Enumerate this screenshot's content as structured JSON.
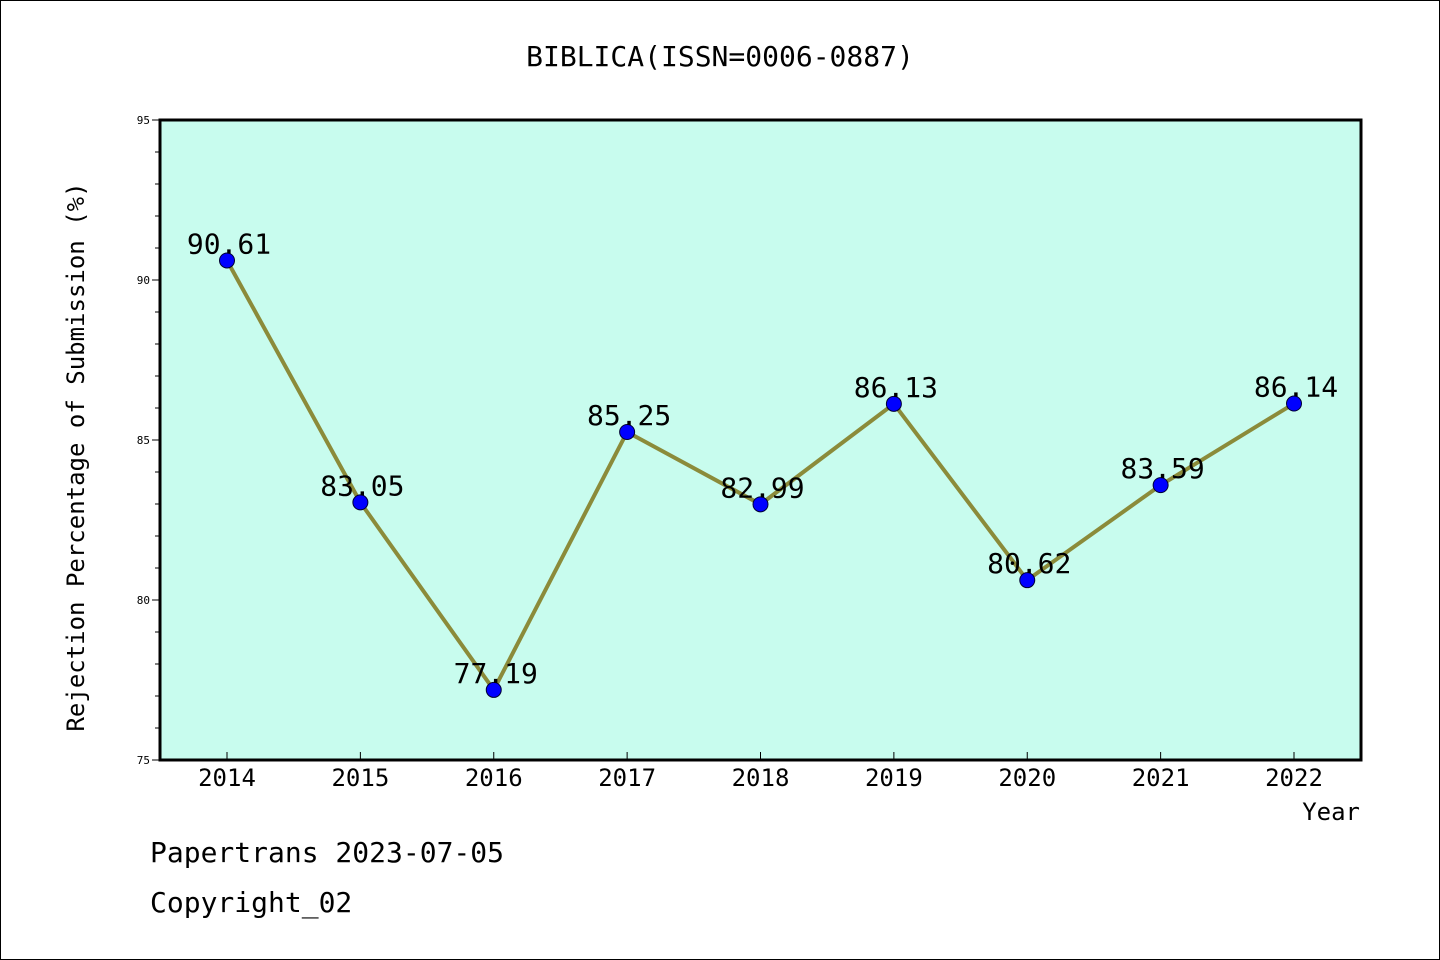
{
  "chart_data": {
    "type": "line",
    "title": "BIBLICA(ISSN=0006-0887)",
    "xlabel": "Year",
    "ylabel": "Rejection Percentage of Submission (%)",
    "categories": [
      "2014",
      "2015",
      "2016",
      "2017",
      "2018",
      "2019",
      "2020",
      "2021",
      "2022"
    ],
    "values": [
      90.61,
      83.05,
      77.19,
      85.25,
      82.99,
      86.13,
      80.62,
      83.59,
      86.14
    ],
    "data_labels": [
      "90.61",
      "83.05",
      "77.19",
      "85.25",
      "82.99",
      "86.13",
      "80.62",
      "83.59",
      "86.14"
    ],
    "ylim": [
      75,
      95
    ],
    "y_ticks": [
      "75",
      "80",
      "85",
      "90",
      "95"
    ],
    "grid": false,
    "line_color": "#8b8b3a",
    "marker_color": "#0000ff",
    "plot_background": "#c8fcee"
  },
  "footer": {
    "line1": "Papertrans 2023-07-05",
    "line2": "Copyright_02"
  }
}
